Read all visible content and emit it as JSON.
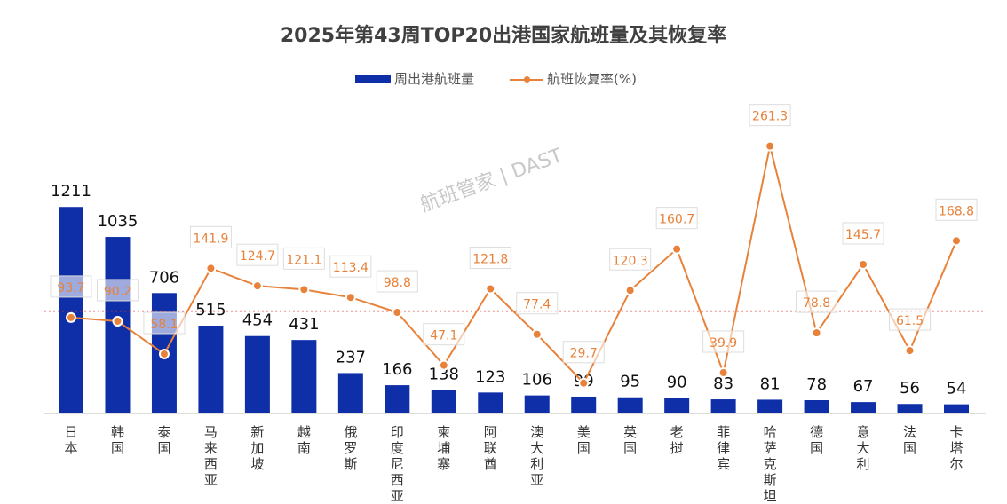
{
  "chart_data": {
    "type": "bar+line",
    "title": "2025年第43周TOP20出港国家航班量及其恢复率",
    "legend_position": "top",
    "watermark": "航班管家 | DAST",
    "categories": [
      "日本",
      "韩国",
      "泰国",
      "马来西亚",
      "新加坡",
      "越南",
      "俄罗斯",
      "印度尼西亚",
      "柬埔寨",
      "阿联酋",
      "澳大利亚",
      "美国",
      "英国",
      "老挝",
      "菲律宾",
      "哈萨克斯坦",
      "德国",
      "意大利",
      "法国",
      "卡塔尔"
    ],
    "series": [
      {
        "name": "周出港航班量",
        "type": "bar",
        "axis": "left",
        "ylim": [
          0,
          1800
        ],
        "color": "#0f2fa8",
        "values": [
          1211,
          1035,
          706,
          515,
          454,
          431,
          237,
          166,
          138,
          123,
          106,
          99,
          95,
          90,
          83,
          81,
          78,
          67,
          56,
          54
        ]
      },
      {
        "name": "航班恢复率(%)",
        "type": "line",
        "axis": "right",
        "ylim": [
          0,
          300
        ],
        "color": "#e8823a",
        "values": [
          93.7,
          90.2,
          58.1,
          141.9,
          124.7,
          121.1,
          113.4,
          98.8,
          47.1,
          121.8,
          77.4,
          29.7,
          120.3,
          160.7,
          39.9,
          261.3,
          78.8,
          145.7,
          61.5,
          168.8
        ]
      }
    ],
    "reference_line": {
      "value": 100,
      "axis": "right",
      "color": "#d9302c"
    },
    "grid": false
  }
}
